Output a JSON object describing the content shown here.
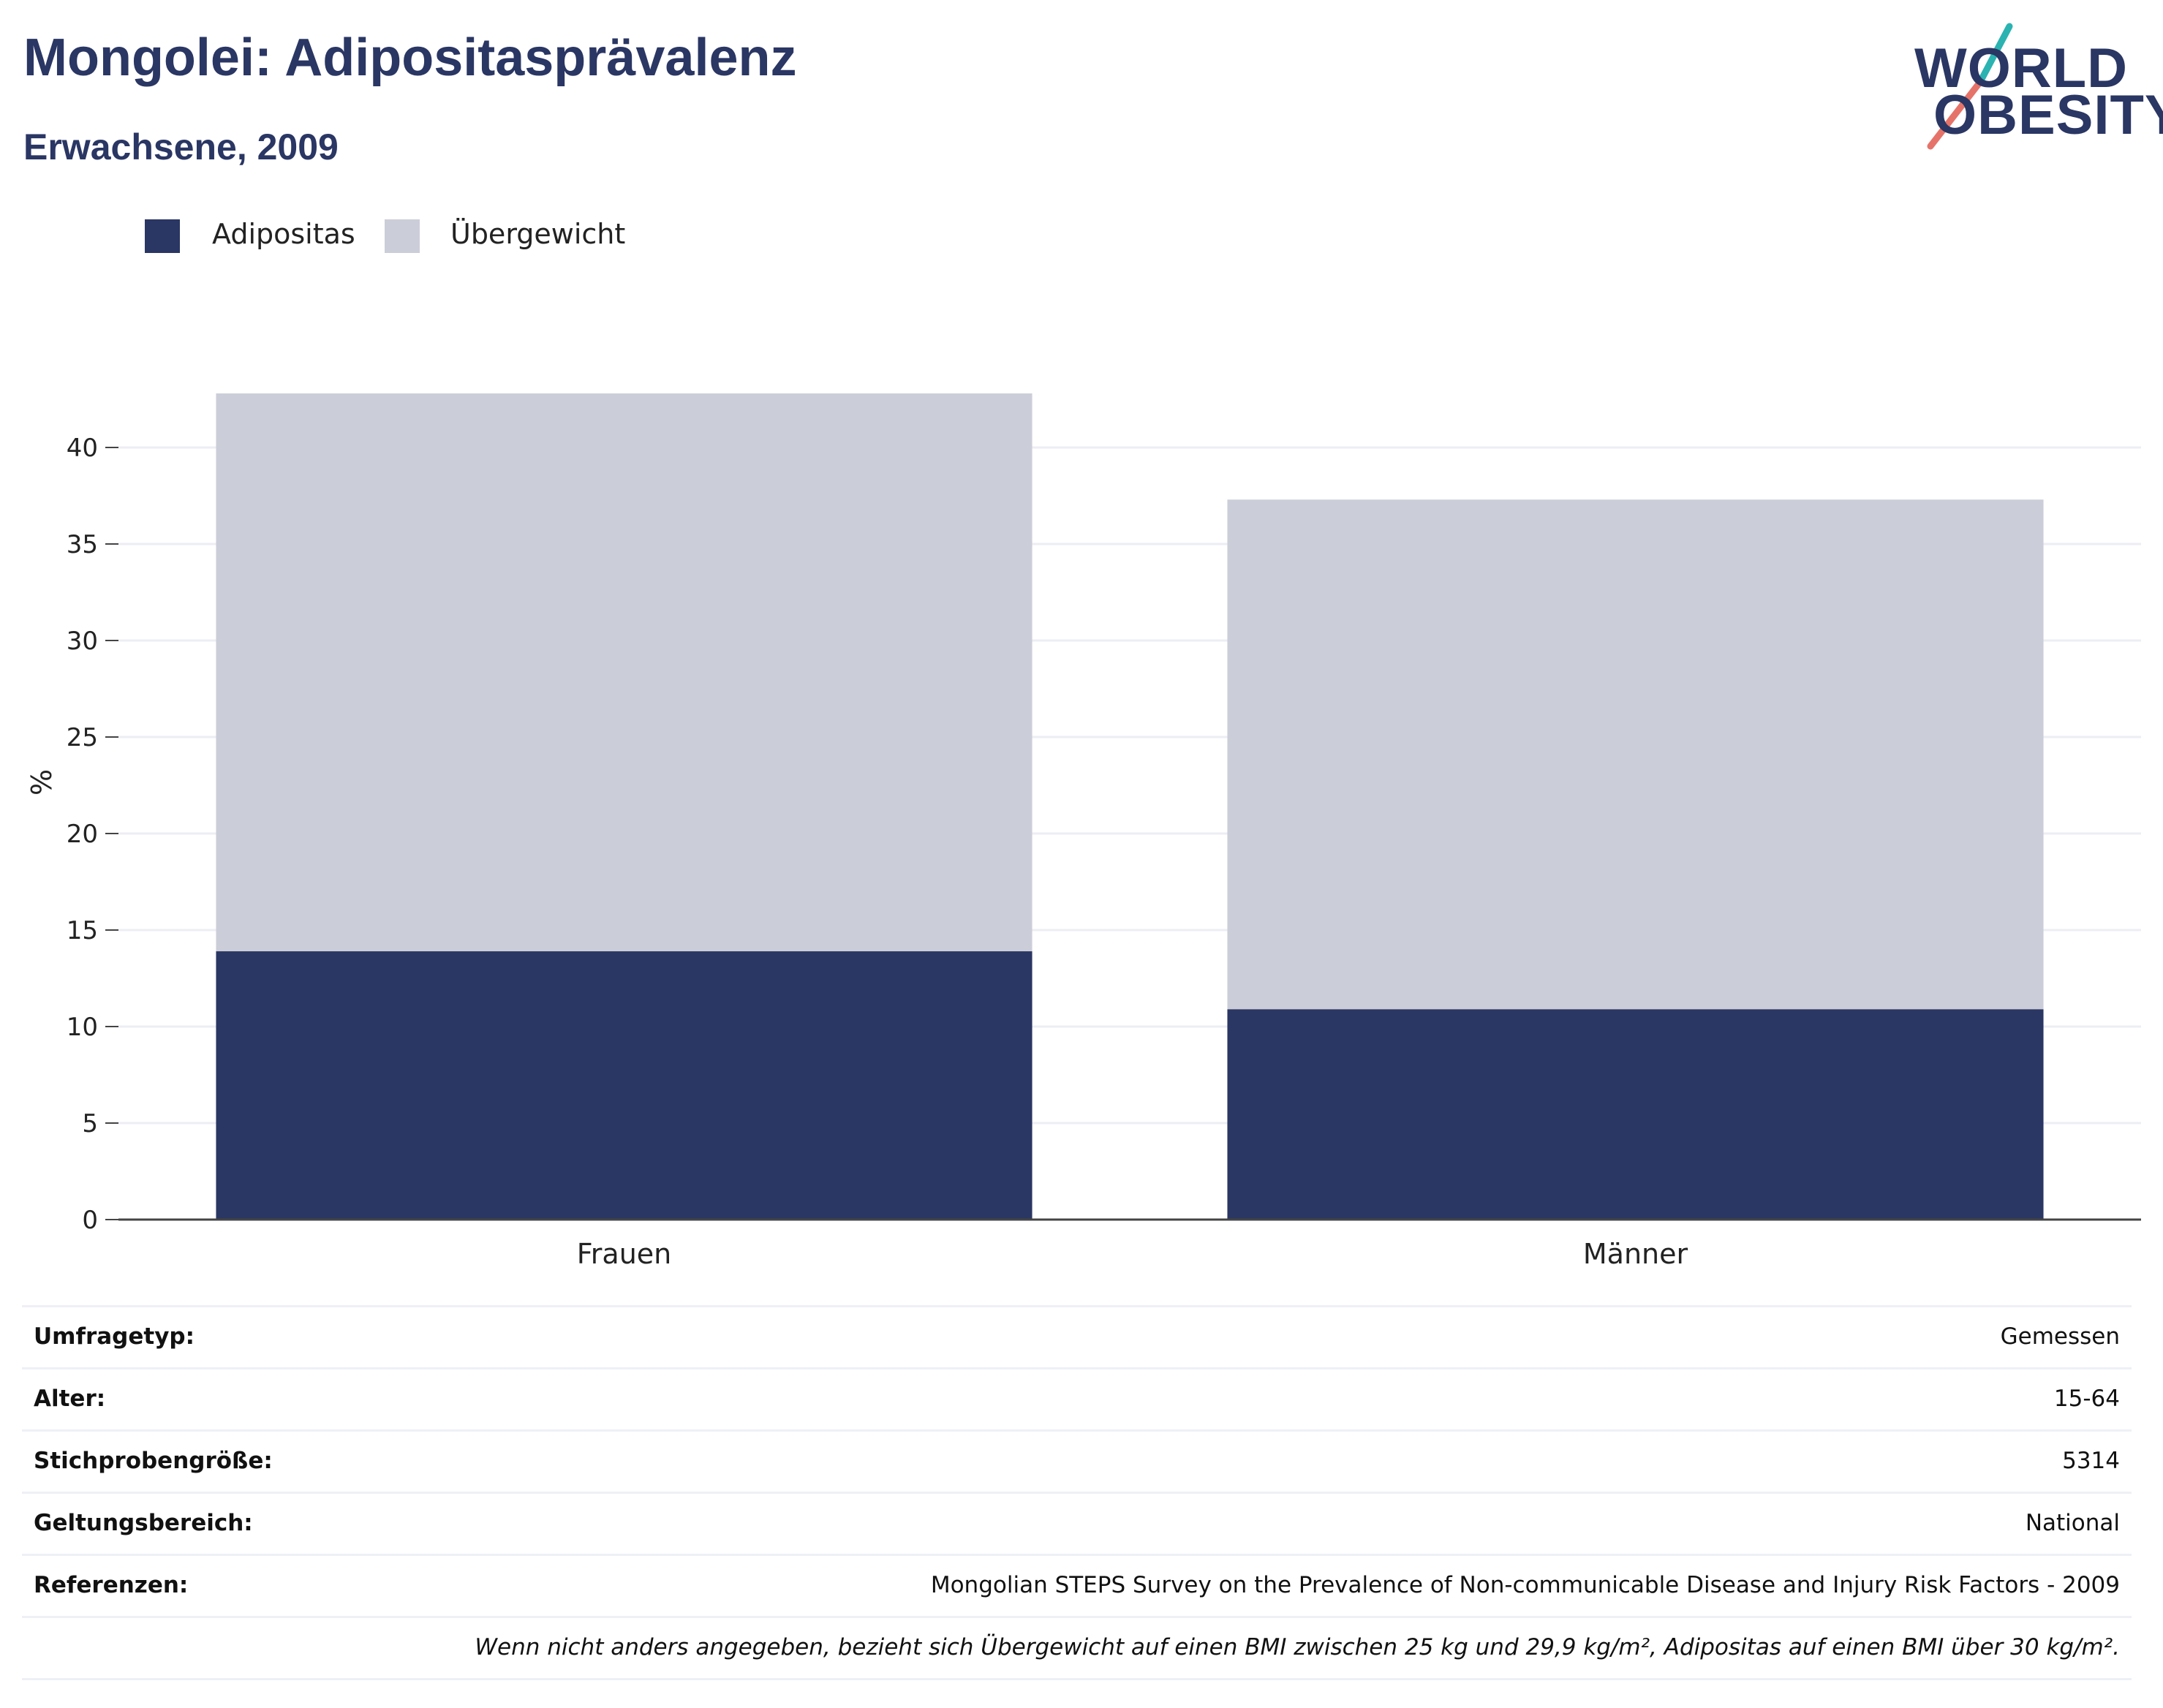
{
  "header": {
    "title": "Mongolei: Adipositasprävalenz",
    "subtitle": "Erwachsene, 2009"
  },
  "logo": {
    "line1": "WORLD",
    "line2": "OBESITY",
    "icon": "world-obesity-slash-logo",
    "colors": {
      "text": "#2a3663",
      "slash_top": "#2ab3b1",
      "slash_bottom": "#e5736a"
    }
  },
  "colors": {
    "adipositas": "#2a3663",
    "uebergewicht": "#cbcdd9",
    "grid": "#eceef4",
    "axis": "#444444"
  },
  "chart_data": {
    "type": "bar",
    "stacked": true,
    "categories": [
      "Frauen",
      "Männer"
    ],
    "series": [
      {
        "name": "Adipositas",
        "values": [
          13.9,
          10.9
        ]
      },
      {
        "name": "Übergewicht",
        "values": [
          28.9,
          26.4
        ]
      }
    ],
    "ylabel": "%",
    "xlabel": "",
    "ylim": [
      0,
      45
    ],
    "yticks": [
      0,
      5,
      10,
      15,
      20,
      25,
      30,
      35,
      40
    ],
    "grid": true,
    "legend_position": "top-left"
  },
  "meta": [
    {
      "key": "Umfragetyp:",
      "value": "Gemessen"
    },
    {
      "key": "Alter:",
      "value": "15-64"
    },
    {
      "key": "Stichprobengröße:",
      "value": "5314"
    },
    {
      "key": "Geltungsbereich:",
      "value": "National"
    },
    {
      "key": "Referenzen:",
      "value": "Mongolian STEPS Survey on the Prevalence of Non-communicable Disease and Injury Risk Factors - 2009"
    }
  ],
  "note": "Wenn nicht anders angegeben, bezieht sich Übergewicht auf einen BMI zwischen 25 kg und 29,9 kg/m², Adipositas auf einen BMI über 30 kg/m²."
}
